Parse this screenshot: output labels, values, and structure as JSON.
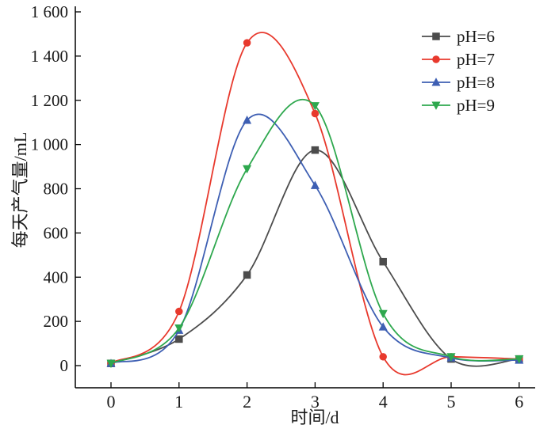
{
  "chart_data": {
    "type": "line",
    "title": "",
    "xlabel": "时间/d",
    "ylabel": "每天产气量/mL",
    "curve_style": "smooth",
    "grid": false,
    "legend_position": "top-right",
    "xlim": [
      -0.52,
      6.25
    ],
    "ylim": [
      -100,
      1600
    ],
    "x": [
      0,
      1,
      2,
      3,
      4,
      5,
      6
    ],
    "xticks": [
      0,
      1,
      2,
      3,
      4,
      5,
      6
    ],
    "xtick_labels": [
      "0",
      "1",
      "2",
      "3",
      "4",
      "5",
      "6"
    ],
    "yticks": [
      0,
      200,
      400,
      600,
      800,
      1000,
      1200,
      1400,
      1600
    ],
    "ytick_labels": [
      "0",
      "200",
      "400",
      "600",
      "800",
      "1 000",
      "1 200",
      "1 400",
      "1 600"
    ],
    "series": [
      {
        "name": "pH=6",
        "color": "#4c4c4c",
        "marker": "square",
        "values": [
          10,
          120,
          410,
          975,
          470,
          30,
          30
        ]
      },
      {
        "name": "pH=7",
        "color": "#e8392d",
        "marker": "circle",
        "values": [
          10,
          245,
          1460,
          1140,
          40,
          40,
          30
        ]
      },
      {
        "name": "pH=8",
        "color": "#3e5fb3",
        "marker": "triangle-up",
        "values": [
          10,
          160,
          1110,
          815,
          175,
          35,
          25
        ]
      },
      {
        "name": "pH=9",
        "color": "#2ea84e",
        "marker": "triangle-down",
        "values": [
          10,
          170,
          890,
          1175,
          235,
          40,
          30
        ]
      }
    ]
  }
}
